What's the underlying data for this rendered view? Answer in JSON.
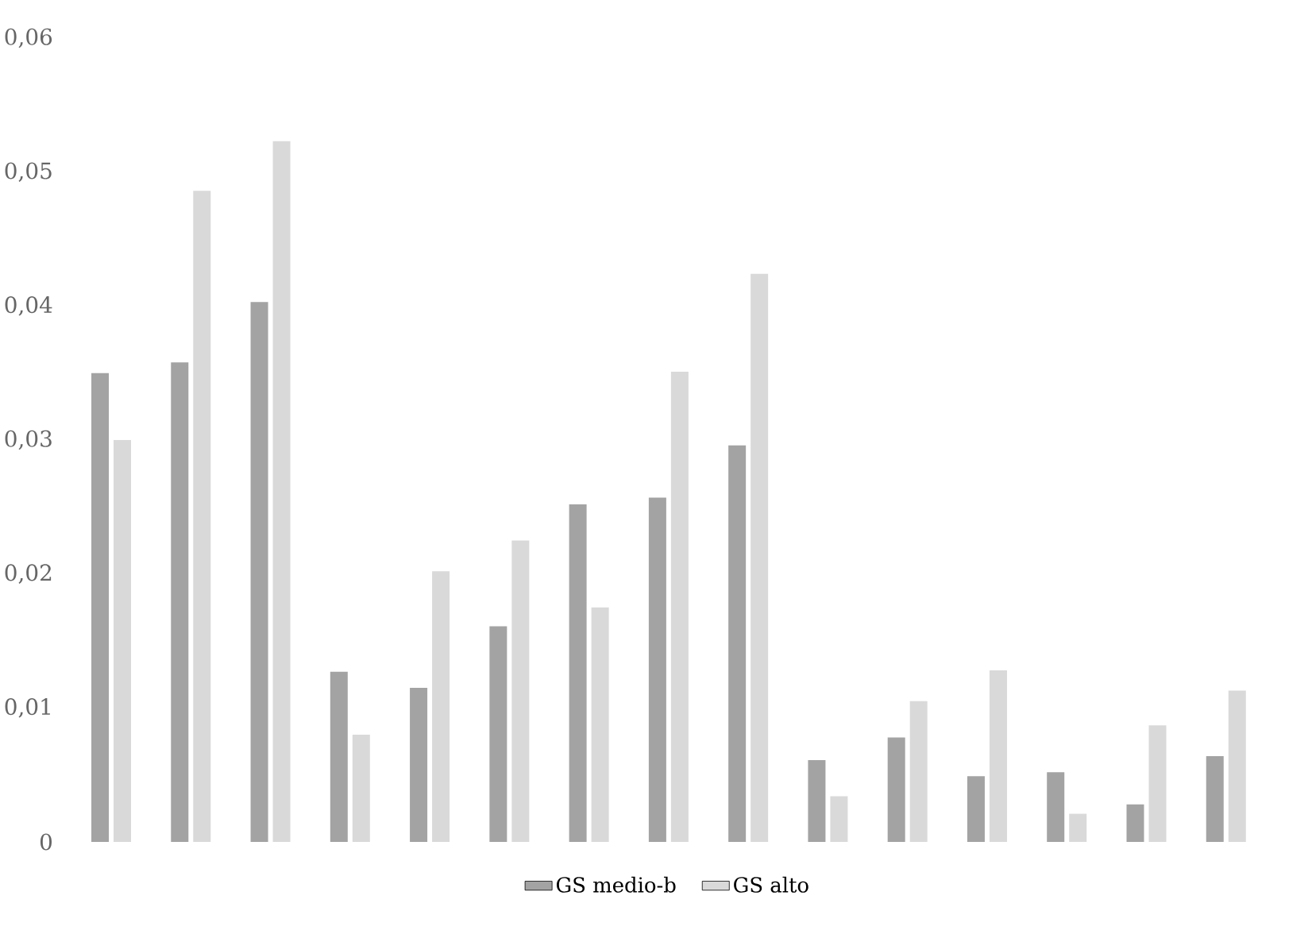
{
  "chart_data": {
    "type": "bar",
    "categories": [
      null,
      null,
      null,
      null,
      null,
      null,
      null,
      null,
      null,
      null,
      null,
      null,
      null,
      null,
      null
    ],
    "series": [
      {
        "name": "GS medio-b",
        "color": "#a3a3a3",
        "values": [
          0.035,
          0.0358,
          0.0403,
          0.0127,
          0.0115,
          0.0161,
          0.0252,
          0.0257,
          0.0296,
          0.0061,
          0.0078,
          0.0049,
          0.0052,
          0.0028,
          0.0064
        ]
      },
      {
        "name": "GS alto",
        "color": "#d9d9d9",
        "values": [
          0.03,
          0.0486,
          0.0523,
          0.008,
          0.0202,
          0.0225,
          0.0175,
          0.0351,
          0.0424,
          0.0034,
          0.0105,
          0.0128,
          0.0021,
          0.0087,
          0.0113
        ]
      }
    ],
    "ylim": [
      0,
      0.06
    ],
    "yticks": [
      0,
      {
        "value": 0.01,
        "label": "0,01"
      },
      {
        "value": 0.02,
        "label": "0,02"
      },
      {
        "value": 0.03,
        "label": "0,03"
      },
      {
        "value": 0.04,
        "label": "0,04"
      },
      {
        "value": 0.05,
        "label": "0,05"
      },
      {
        "value": 0.06,
        "label": "0,06"
      }
    ],
    "grid": false,
    "legend": "bottom"
  }
}
